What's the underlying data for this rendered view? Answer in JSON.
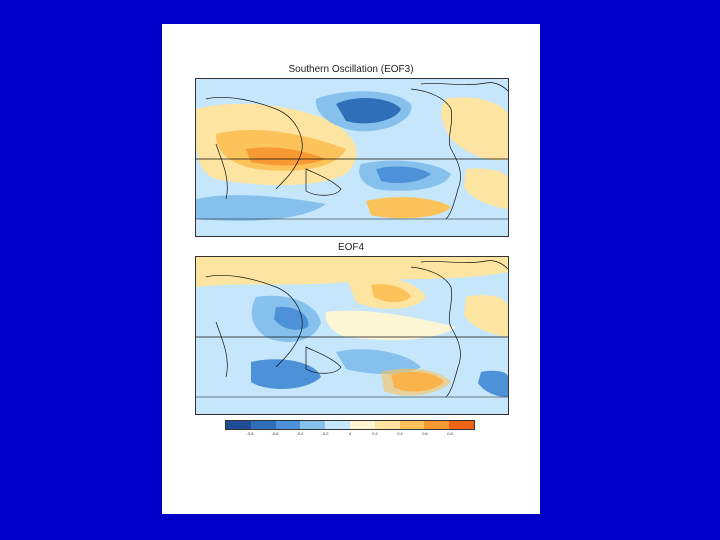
{
  "slide": {
    "background": "#0000c8",
    "sheet_background": "#ffffff"
  },
  "panels": [
    {
      "title": "Southern Oscillation (EOF3)"
    },
    {
      "title": "EOF4"
    }
  ],
  "colorbar": {
    "colors": [
      "#1f4e96",
      "#2f6fb9",
      "#4d92d8",
      "#86c1ee",
      "#c6e7fb",
      "#fdf6d4",
      "#fde4a0",
      "#fbc35a",
      "#f79a33",
      "#f2631a"
    ],
    "tick_labels": [
      "-0.8",
      "-0.6",
      "-0.4",
      "-0.2",
      "0",
      "0.2",
      "0.4",
      "0.6",
      "0.8"
    ]
  },
  "map_colors": {
    "deep_blue": "#2f6fb9",
    "mid_blue": "#4d92d8",
    "light_blue": "#86c1ee",
    "pale_blue": "#c6e7fb",
    "cream": "#fdf6d4",
    "light_yellow": "#fde4a0",
    "yellow": "#fbc35a",
    "orange": "#f79a33",
    "coast": "#111111"
  }
}
